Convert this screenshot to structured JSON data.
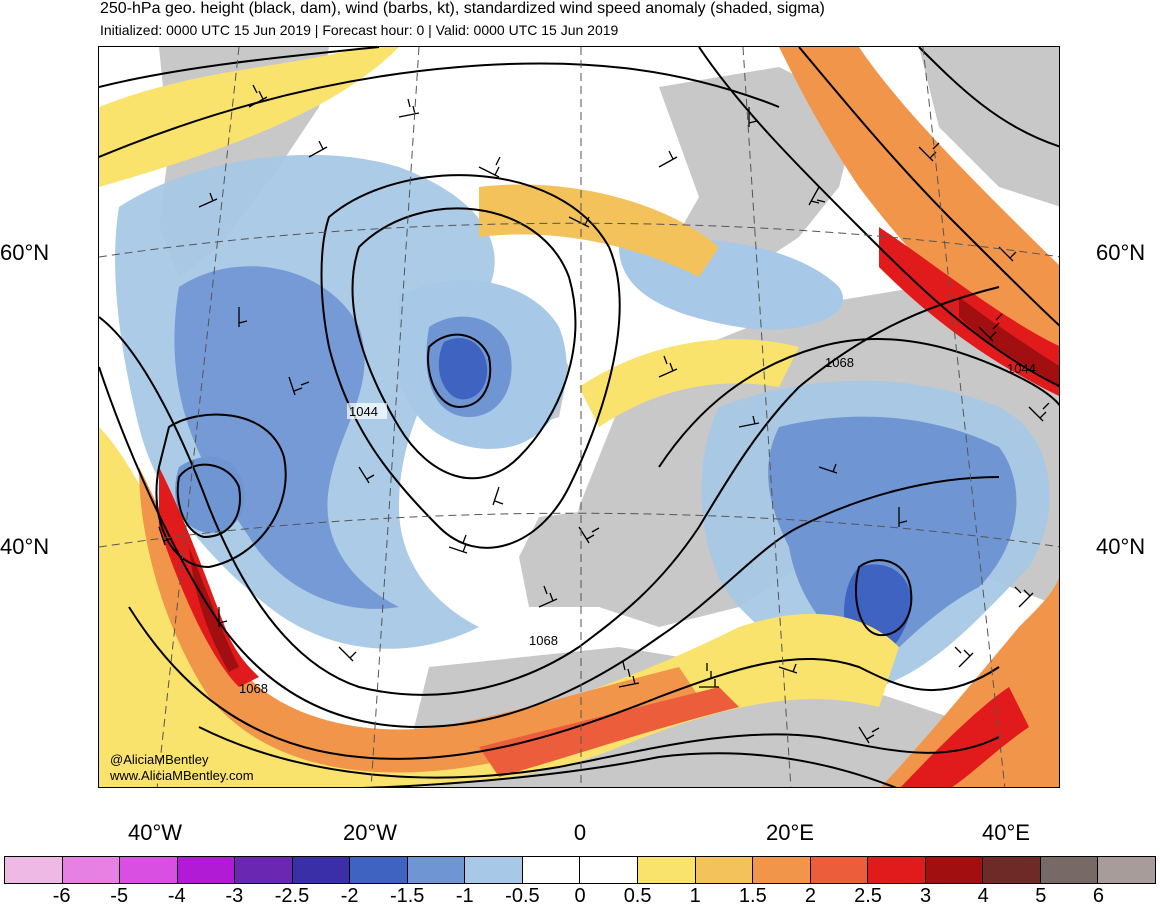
{
  "header": {
    "title": "250-hPa geo. height (black, dam), wind (barbs, kt), standardized wind speed anomaly (shaded, sigma)",
    "subtitle": "Initialized: 0000 UTC 15 Jun 2019 | Forecast hour: 0 | Valid: 0000 UTC 15 Jun 2019"
  },
  "map": {
    "lat_labels": [
      "60°N",
      "40°N"
    ],
    "lon_labels": [
      "40°W",
      "20°W",
      "0",
      "20°E",
      "40°E"
    ],
    "contour_labels": [
      "1044",
      "1068",
      "1068",
      "1044",
      "1068"
    ],
    "watermark": {
      "handle": "@AliciaMBentley",
      "url": "www.AliciaMBentley.com"
    }
  },
  "colorbar": {
    "ticks": [
      "-6",
      "-5",
      "-4",
      "-3",
      "-2.5",
      "-2",
      "-1.5",
      "-1",
      "-0.5",
      "0",
      "0.5",
      "1",
      "1.5",
      "2",
      "2.5",
      "3",
      "4",
      "5",
      "6"
    ],
    "colors": [
      "#efb9e6",
      "#e680e3",
      "#d94fe1",
      "#b21bd6",
      "#6a27b2",
      "#3a2fa6",
      "#3e63c1",
      "#6f95d3",
      "#a7c8e6",
      "#ffffff",
      "#ffffff",
      "#f9e36c",
      "#f3c25a",
      "#f1954a",
      "#ec5e3b",
      "#e11b1b",
      "#a10f10",
      "#6e2a27",
      "#776966",
      "#a89c9b"
    ]
  },
  "colors": {
    "land": "#c8c8c8",
    "blue_light": "#a7c8e6",
    "blue_mid": "#6f95d3",
    "blue_dark": "#3e63c1",
    "yellow": "#f9e36c",
    "orange_light": "#f3c25a",
    "orange": "#f1954a",
    "red_orange": "#ec5e3b",
    "red": "#e11b1b",
    "dark_red": "#a10f10"
  }
}
